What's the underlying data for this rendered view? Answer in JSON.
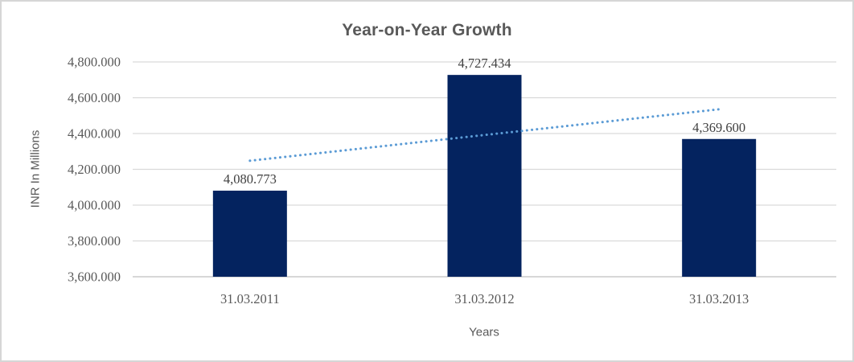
{
  "chart_data": {
    "type": "bar",
    "title": "Year-on-Year Growth",
    "xlabel": "Years",
    "ylabel": "INR In Millions",
    "categories": [
      "31.03.2011",
      "31.03.2012",
      "31.03.2013"
    ],
    "values": [
      4080.773,
      4727.434,
      4369.6
    ],
    "data_labels": [
      "4,080.773",
      "4,727.434",
      "4,369.600"
    ],
    "ylim": [
      3600,
      4800
    ],
    "ytick_step": 200,
    "ytick_labels": [
      "3,600.000",
      "3,800.000",
      "4,000.000",
      "4,200.000",
      "4,400.000",
      "4,600.000",
      "4,800.000"
    ],
    "grid": true,
    "legend": "none",
    "trendline": {
      "type": "linear",
      "style": "dotted"
    },
    "colors": {
      "bar": "#04235f",
      "trendline": "#5b9bd5",
      "gridline": "#d9d9d9",
      "axis_line": "#bfbfbf",
      "tick_text": "#595959",
      "data_label_text": "#404040",
      "title_text": "#595959"
    }
  }
}
